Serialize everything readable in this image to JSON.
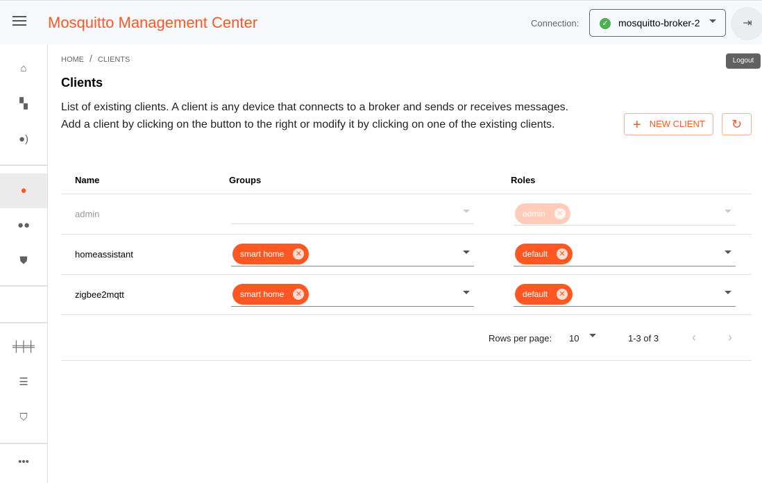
{
  "header": {
    "title": "Mosquitto Management Center",
    "connection_label": "Connection:",
    "connection_value": "mosquitto-broker-2",
    "logout_tooltip": "Logout"
  },
  "sidebar": {
    "items": [
      {
        "icon": "home-icon"
      },
      {
        "icon": "topic-tree-icon"
      },
      {
        "icon": "streams-icon"
      },
      {
        "icon": "client-icon",
        "selected": true
      },
      {
        "icon": "groups-icon"
      },
      {
        "icon": "roles-icon"
      },
      {
        "icon": "cluster-icon"
      },
      {
        "icon": "list-icon"
      },
      {
        "icon": "security-shield-icon"
      },
      {
        "icon": "more-icon"
      }
    ]
  },
  "breadcrumb": [
    "HOME",
    "CLIENTS"
  ],
  "page": {
    "title": "Clients",
    "description": "List of existing clients. A client is any device that connects to a broker and sends or receives messages. Add a client by clicking on the button to the right or modify it by clicking on one of the existing clients.",
    "new_client": "NEW CLIENT"
  },
  "table": {
    "headers": [
      "Name",
      "Groups",
      "Roles"
    ],
    "rows": [
      {
        "name": "admin",
        "groups": [],
        "roles": [
          "admin"
        ],
        "disabled": true
      },
      {
        "name": "homeassistant",
        "groups": [
          "smart home"
        ],
        "roles": [
          "default"
        ]
      },
      {
        "name": "zigbee2mqtt",
        "groups": [
          "smart home"
        ],
        "roles": [
          "default"
        ]
      }
    ]
  },
  "pagination": {
    "rows_per_page_label": "Rows per page:",
    "rows_per_page": "10",
    "range": "1-3 of 3"
  },
  "colors": {
    "accent": "#ff5722",
    "connected": "#4caf50"
  }
}
